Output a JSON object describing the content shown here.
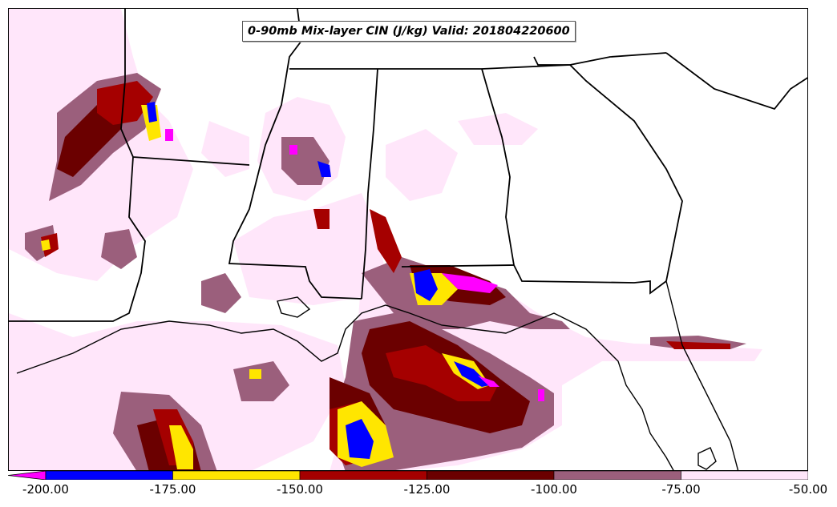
{
  "title": "0-90mb Mix-layer CIN (J/kg) Valid: 201804220600",
  "colorbar": {
    "bins": [
      {
        "color": "#0000ff"
      },
      {
        "color": "#ffe600"
      },
      {
        "color": "#a50000"
      },
      {
        "color": "#6b0000"
      },
      {
        "color": "#9b5f7c"
      },
      {
        "color": "#ffe6fa"
      }
    ],
    "extend_color": "#ff00ff",
    "tick_labels": [
      "-200.00",
      "-175.00",
      "-150.00",
      "-125.00",
      "-100.00",
      "-75.00",
      "-50.00"
    ]
  }
}
